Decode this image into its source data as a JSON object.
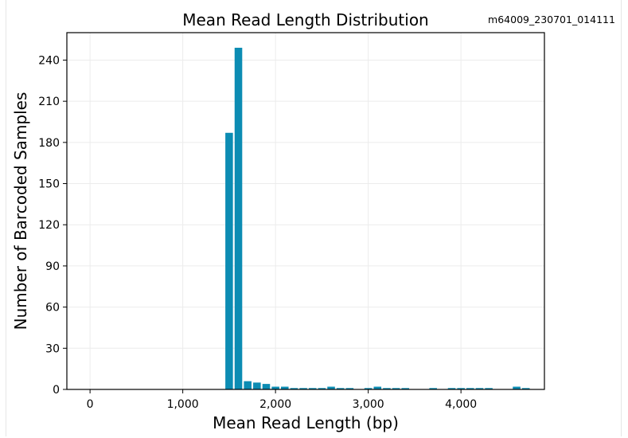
{
  "run_id": "m64009_230701_014111",
  "colors": {
    "bar": "#0c8cb3",
    "grid": "#ececec",
    "axis": "#000000"
  },
  "chart_data": {
    "type": "bar",
    "title": "Mean Read Length Distribution",
    "xlabel": "Mean Read Length (bp)",
    "ylabel": "Number of Barcoded Samples",
    "xlim": [
      -250,
      4900
    ],
    "ylim": [
      0,
      260
    ],
    "xticks": [
      0,
      1000,
      2000,
      3000,
      4000
    ],
    "xtick_labels": [
      "0",
      "1,000",
      "2,000",
      "3,000",
      "4,000"
    ],
    "yticks": [
      0,
      30,
      60,
      90,
      120,
      150,
      180,
      210,
      240
    ],
    "ytick_labels": [
      "0",
      "30",
      "60",
      "90",
      "120",
      "150",
      "180",
      "210",
      "240"
    ],
    "grid": true,
    "bin_width": 100,
    "x": [
      1500,
      1600,
      1700,
      1800,
      1900,
      2000,
      2100,
      2200,
      2300,
      2400,
      2500,
      2600,
      2700,
      2800,
      3000,
      3100,
      3200,
      3300,
      3400,
      3700,
      3900,
      4000,
      4100,
      4200,
      4300,
      4600,
      4700
    ],
    "values": [
      187,
      249,
      6,
      5,
      4,
      2,
      2,
      1,
      1,
      1,
      1,
      2,
      1,
      1,
      1,
      2,
      1,
      1,
      1,
      1,
      1,
      1,
      1,
      1,
      1,
      2,
      1
    ]
  }
}
